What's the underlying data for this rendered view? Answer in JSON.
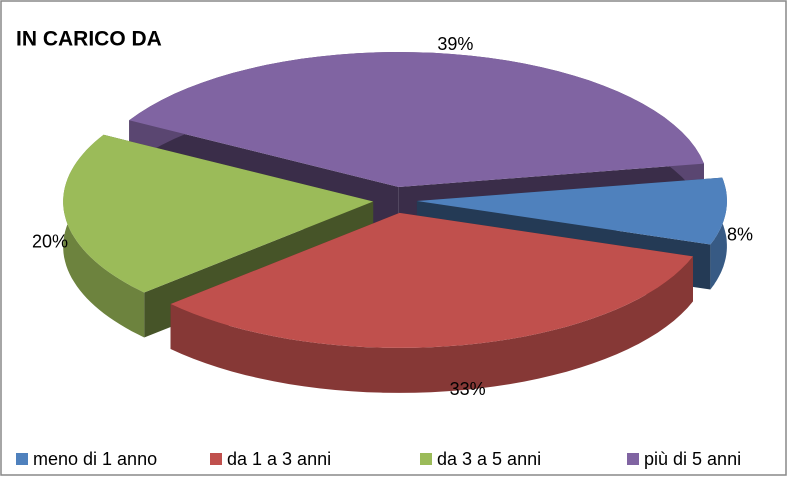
{
  "chart_data": {
    "type": "pie",
    "title": "IN CARICO DA",
    "categories": [
      "meno di 1 anno",
      "da 1 a 3 anni",
      "da 3 a 5 anni",
      "più di 5 anni"
    ],
    "values": [
      8,
      33,
      20,
      39
    ],
    "value_labels": [
      "8%",
      "33%",
      "20%",
      "39%"
    ],
    "colors": [
      "#4f81bd",
      "#c0504d",
      "#9bbb59",
      "#8064a2"
    ],
    "legend": "bottom"
  }
}
